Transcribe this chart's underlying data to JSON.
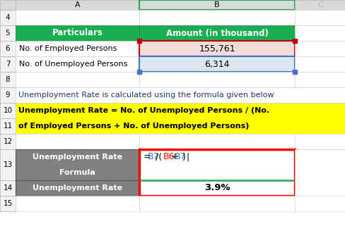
{
  "bg_color": "#ffffff",
  "col_header_color": "#d9d9d9",
  "row_header_color": "#f2f2f2",
  "green_header_color": "#1aad52",
  "pink_cell_color": "#f2dcdb",
  "blue_cell_color": "#dce6f1",
  "gray_cell_color": "#808080",
  "yellow_bg_color": "#ffff00",
  "col_A_label": "A",
  "col_B_label": "B",
  "col_C_label": "C",
  "header_row5_A": "Particulars",
  "header_row5_B": "Amount (in thousand)",
  "row6_A": "No. of Employed Persons",
  "row6_B": "155,761",
  "row7_A": "No. of Unemployed Persons",
  "row7_B": "6,314",
  "row9_text": "Unemployment Rate is calculated using the formula given below",
  "row10_text": "Unemployment Rate = No. of Unemployed Persons / (No.",
  "row11_text": "of Employed Persons + No. of Unemployed Persons)",
  "row13_A1": "Unemployment Rate",
  "row13_A2": "Formula",
  "row14_A": "Unemployment Rate",
  "row14_B": "3.9%",
  "formula_blue": "#4472c4",
  "formula_red": "#ff0000",
  "red_border": "#ff0000",
  "green_line": "#1aad52",
  "col_b_border_color": "#c00000",
  "col_b7_border_color": "#4472c4",
  "row9_color": "#1f3864"
}
